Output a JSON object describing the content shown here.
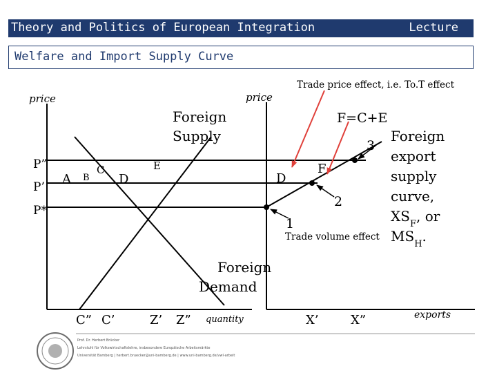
{
  "header": {
    "title": "Theory and Politics of European Integration",
    "right_text": "Lecture",
    "bg_color": "#1f3a6e"
  },
  "subtitle": "Welfare and Import  Supply Curve",
  "diagram": {
    "left_axis_label": "price",
    "right_axis_label": "price",
    "left_quantity_label": "quantity",
    "right_quantity_label": "exports",
    "foreign_supply_label": [
      "Foreign",
      "Supply"
    ],
    "foreign_demand_label": [
      "Foreign",
      "Demand"
    ],
    "price_levels": [
      "P”",
      "P’",
      "P*"
    ],
    "areas": [
      "A",
      "B",
      "C",
      "D",
      "E"
    ],
    "left_quantities": [
      "C”",
      "C’",
      "Z’",
      "Z”"
    ],
    "right_quantities": [
      "X’",
      "X”"
    ],
    "right_area_d": "D",
    "right_area_f": "F",
    "area_sum": "F=C+E",
    "points": [
      "1",
      "2",
      "3"
    ],
    "trade_price_effect": "Trade price effect, i.e. To.T effect",
    "trade_volume_effect": "Trade volume effect",
    "export_supply_label": [
      "Foreign",
      "export",
      "supply",
      "curve,",
      "XS",
      "F",
      ", or",
      "MS",
      "H",
      "."
    ],
    "arrow_color": "#e0403a",
    "line_color": "#000000"
  },
  "footer": {
    "lines": [
      "Prof. Dr. Herbert Brücker",
      "Lehrstuhl für Volkswirtschaftslehre, insbesondere Europäische Arbeitsmärkte",
      "Universität Bamberg | herbert.bruecker@uni-bamberg.de | www.uni-bamberg.de/vwl-arbeit"
    ]
  }
}
